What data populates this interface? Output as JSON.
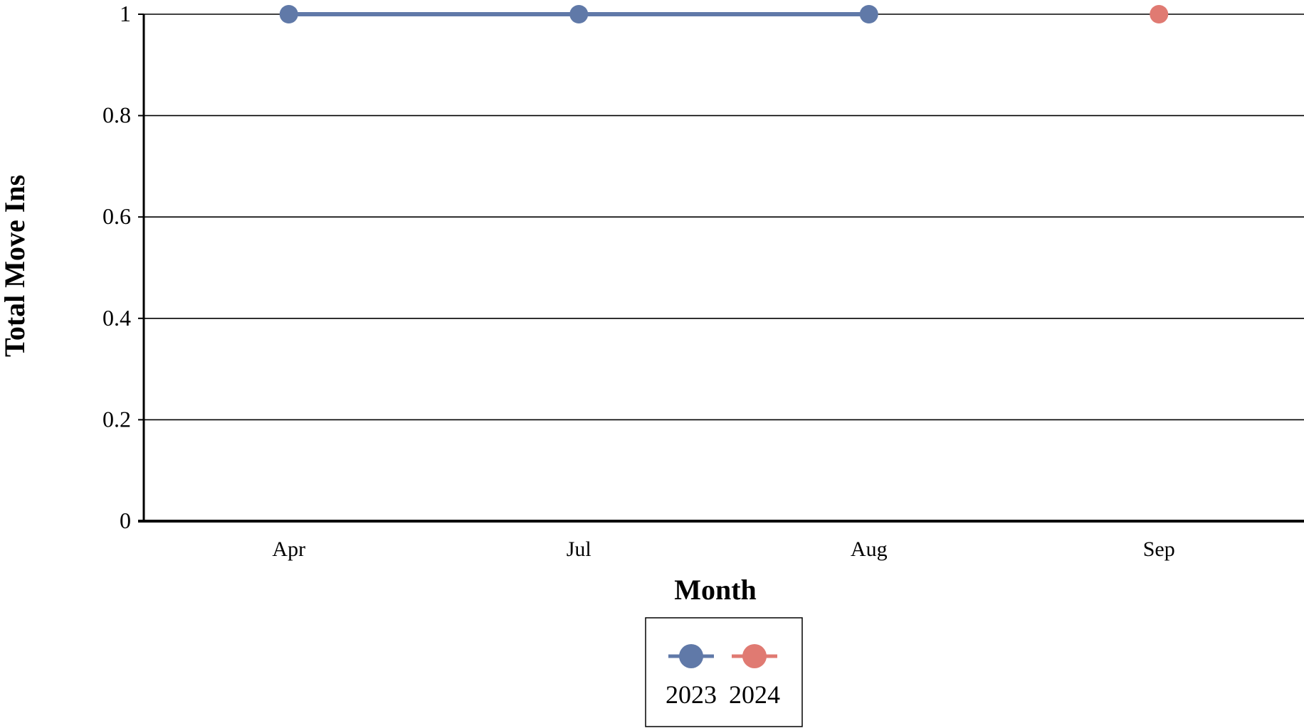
{
  "chart_data": {
    "type": "line",
    "title": "",
    "xlabel": "Month",
    "ylabel": "Total Move Ins",
    "categories": [
      "Apr",
      "Jul",
      "Aug",
      "Sep"
    ],
    "ylim": [
      0,
      1
    ],
    "yticks": [
      "0",
      "0.2",
      "0.4",
      "0.6",
      "0.8",
      "1"
    ],
    "grid": true,
    "legend_position": "bottom-center",
    "series": [
      {
        "name": "2023",
        "color": "#6079a8",
        "values": [
          1,
          1,
          1,
          null
        ]
      },
      {
        "name": "2024",
        "color": "#e07a72",
        "values": [
          null,
          null,
          null,
          1
        ]
      }
    ]
  }
}
